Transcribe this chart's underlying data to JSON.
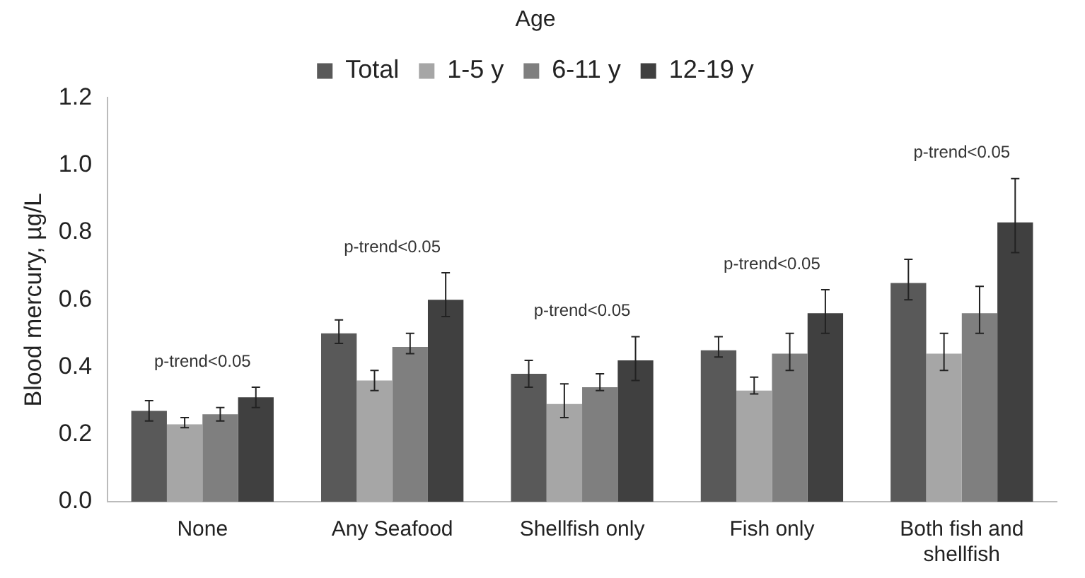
{
  "chart_data": {
    "type": "bar",
    "ylabel": "Blood mercury, µg/L",
    "legend_title": "Age",
    "legend": "top",
    "categories": [
      "None",
      "Any Seafood",
      "Shellfish only",
      "Fish only",
      "Both fish and shellfish"
    ],
    "series": [
      {
        "name": "Total",
        "color": "#595959",
        "values": [
          0.27,
          0.5,
          0.38,
          0.45,
          0.65
        ],
        "errors": [
          [
            0.24,
            0.3
          ],
          [
            0.47,
            0.54
          ],
          [
            0.34,
            0.42
          ],
          [
            0.43,
            0.49
          ],
          [
            0.6,
            0.72
          ]
        ]
      },
      {
        "name": "1-5 y",
        "color": "#a6a6a6",
        "values": [
          0.23,
          0.36,
          0.29,
          0.33,
          0.44
        ],
        "errors": [
          [
            0.22,
            0.25
          ],
          [
            0.33,
            0.39
          ],
          [
            0.25,
            0.35
          ],
          [
            0.32,
            0.37
          ],
          [
            0.39,
            0.5
          ]
        ]
      },
      {
        "name": "6-11 y",
        "color": "#7f7f7f",
        "values": [
          0.26,
          0.46,
          0.34,
          0.44,
          0.56
        ],
        "errors": [
          [
            0.24,
            0.28
          ],
          [
            0.44,
            0.5
          ],
          [
            0.33,
            0.38
          ],
          [
            0.39,
            0.5
          ],
          [
            0.5,
            0.64
          ]
        ]
      },
      {
        "name": "12-19 y",
        "color": "#404040",
        "values": [
          0.31,
          0.6,
          0.42,
          0.56,
          0.83
        ],
        "errors": [
          [
            0.28,
            0.34
          ],
          [
            0.55,
            0.68
          ],
          [
            0.36,
            0.49
          ],
          [
            0.5,
            0.63
          ],
          [
            0.74,
            0.96
          ]
        ]
      }
    ],
    "ylim": [
      0,
      1.2
    ],
    "yticks": [
      {
        "value": 0,
        "label": "0.0"
      },
      {
        "value": 0.2,
        "label": "0.2"
      },
      {
        "value": 0.4,
        "label": "0.4"
      },
      {
        "value": 0.6,
        "label": "0.6"
      },
      {
        "value": 0.8,
        "label": "0.8"
      },
      {
        "value": 1,
        "label": "1.0"
      },
      {
        "value": 1.2,
        "label": "1.2"
      }
    ],
    "grid": false,
    "annotations": [
      "p-trend<0.05",
      "p-trend<0.05",
      "p-trend<0.05",
      "p-trend<0.05",
      "p-trend<0.05"
    ]
  }
}
